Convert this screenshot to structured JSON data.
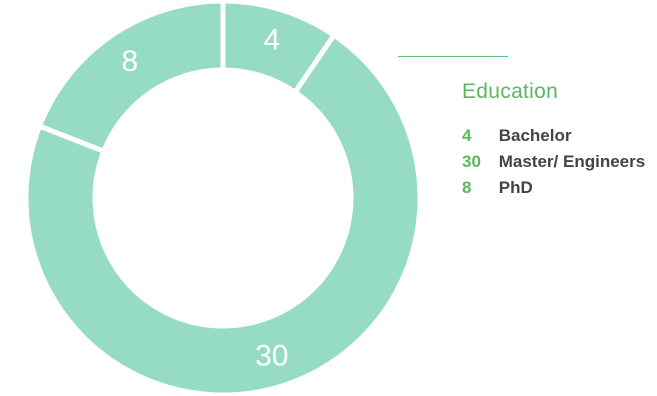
{
  "chart_data": {
    "type": "pie",
    "style": "donut",
    "title": "Education",
    "categories": [
      "Bachelor",
      "Master/ Engineers",
      "PhD"
    ],
    "values": [
      4,
      30,
      8
    ],
    "colors": {
      "slice": "#96dbc6",
      "accent": "#5cb85c",
      "label_text": "#444444"
    },
    "legend_position": "right"
  }
}
